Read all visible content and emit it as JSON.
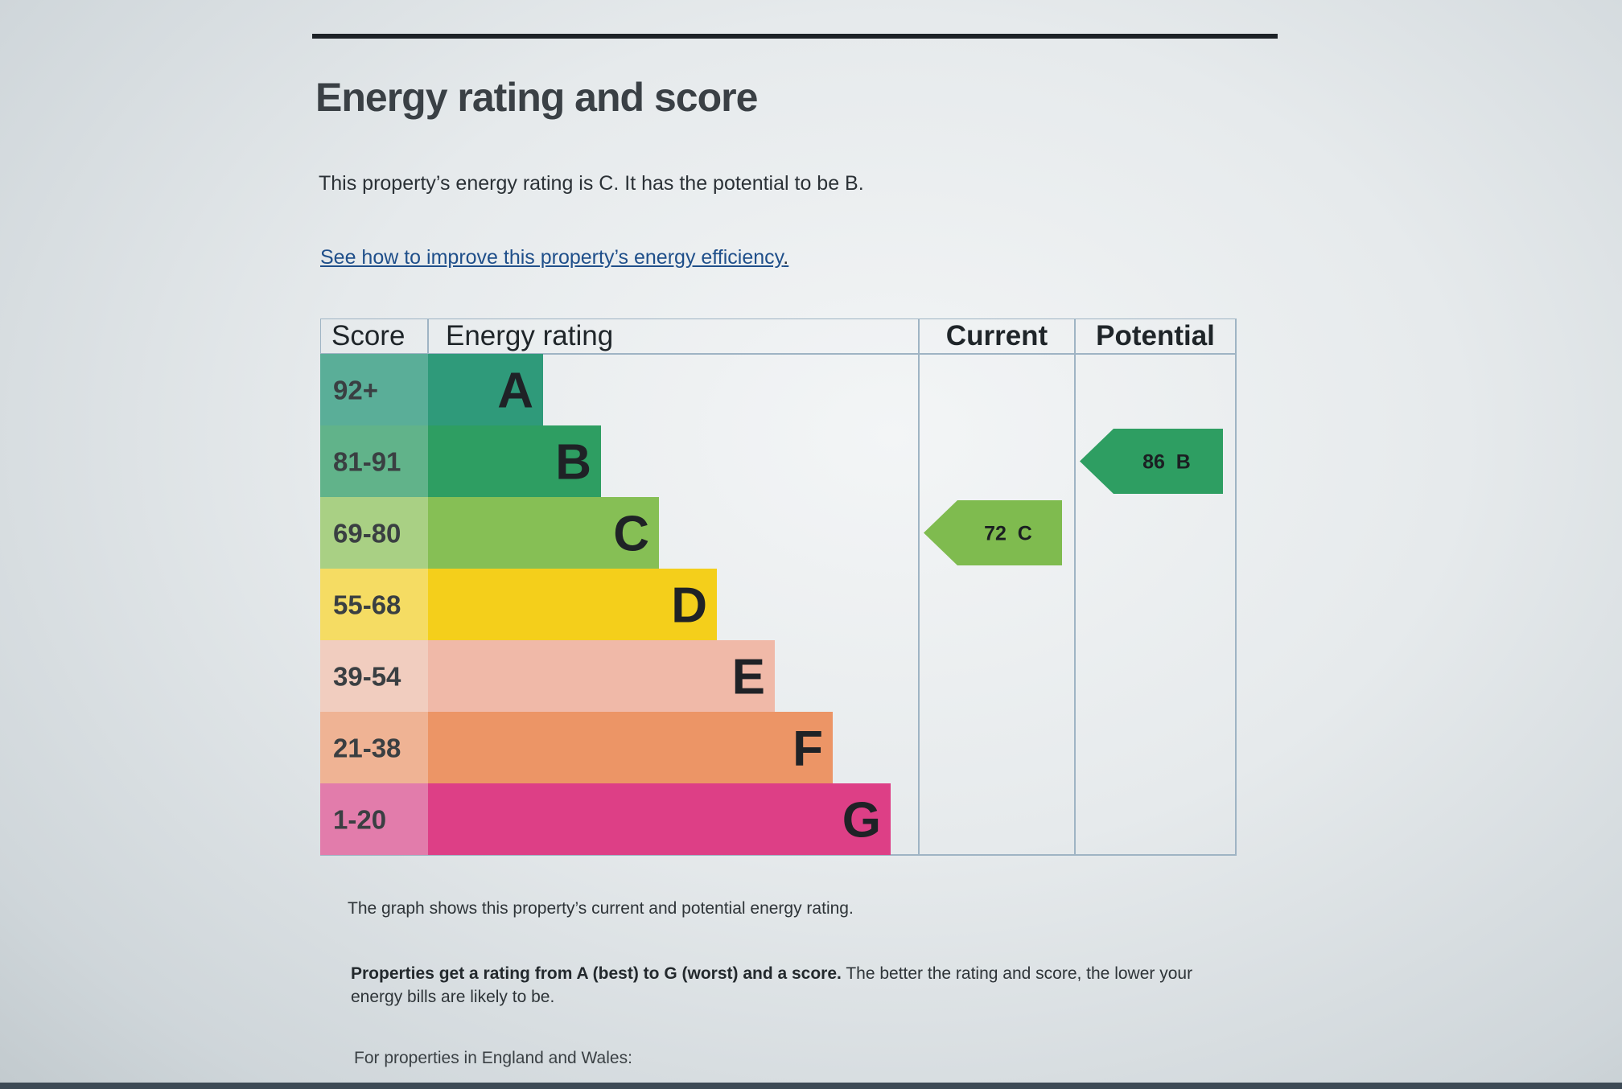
{
  "page": {
    "title": "Energy rating and score",
    "intro": "This property’s energy rating is C. It has the potential to be B.",
    "improve_link": "See how to improve this property’s energy efficiency",
    "improve_link_suffix": ".",
    "caption": "The graph shows this property’s current and potential energy rating.",
    "explain_bold": "Properties get a rating from A (best) to G (worst) and a score.",
    "explain_rest": " The better the rating and score, the lower your energy bills are likely to be.",
    "england_wales": "For properties in England and Wales:"
  },
  "chart_data": {
    "type": "table",
    "columns": [
      "Score",
      "Energy rating",
      "Current",
      "Potential"
    ],
    "bands": [
      {
        "band": "A",
        "score_range": "92+",
        "color": "#2f9a7a",
        "score_color": "#5aae98"
      },
      {
        "band": "B",
        "score_range": "81-91",
        "color": "#2e9e62",
        "score_color": "#61b38a"
      },
      {
        "band": "C",
        "score_range": "69-80",
        "color": "#86bf55",
        "score_color": "#a9d084"
      },
      {
        "band": "D",
        "score_range": "55-68",
        "color": "#f4cf1b",
        "score_color": "#f5dc63"
      },
      {
        "band": "E",
        "score_range": "39-54",
        "color": "#f0b9a8",
        "score_color": "#f1cdbf"
      },
      {
        "band": "F",
        "score_range": "21-38",
        "color": "#ec9566",
        "score_color": "#efb394"
      },
      {
        "band": "G",
        "score_range": "1-20",
        "color": "#dd3f86",
        "score_color": "#e27cab"
      }
    ],
    "current": {
      "score": 72,
      "band": "C",
      "label": "72  C",
      "color": "#7fbb4f"
    },
    "potential": {
      "score": 86,
      "band": "B",
      "label": "86  B",
      "color": "#2e9e62"
    }
  }
}
